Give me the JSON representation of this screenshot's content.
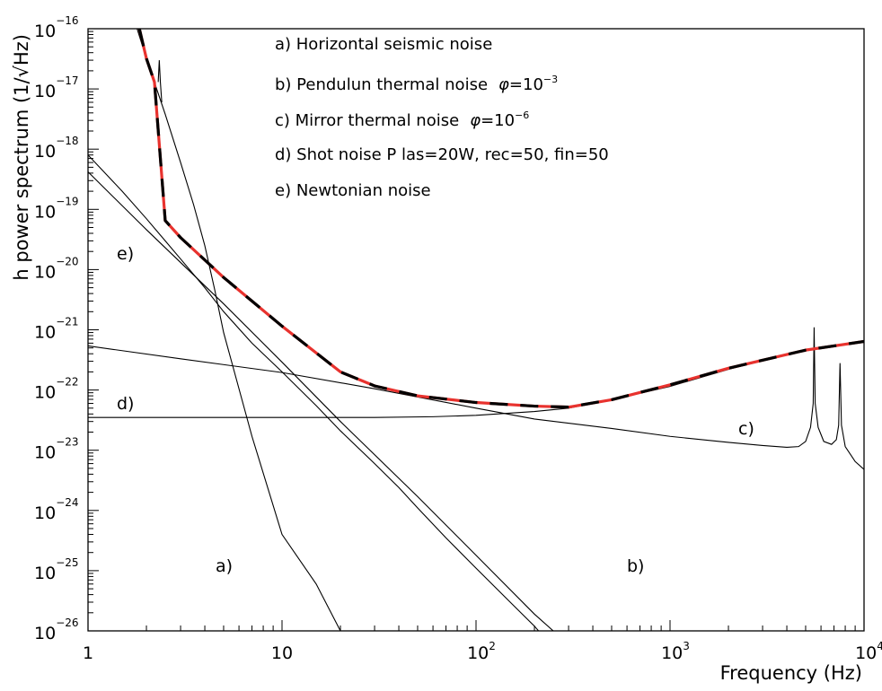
{
  "chart_data": {
    "type": "line",
    "title": "",
    "xlabel": "Frequency (Hz)",
    "ylabel": "h power spectrum (1/√Hz)",
    "x_scale": "log",
    "y_scale": "log",
    "xlim": [
      1,
      10000
    ],
    "ylim": [
      1e-26,
      1e-16
    ],
    "grid": false,
    "x_ticks": [
      {
        "value": 1,
        "base": "1",
        "exp": ""
      },
      {
        "value": 10,
        "base": "10",
        "exp": ""
      },
      {
        "value": 100,
        "base": "10",
        "exp": "2"
      },
      {
        "value": 1000,
        "base": "10",
        "exp": "3"
      },
      {
        "value": 10000,
        "base": "10",
        "exp": "4"
      }
    ],
    "y_ticks": [
      {
        "value": 1e-26,
        "base": "10",
        "exp": "−26"
      },
      {
        "value": 1e-25,
        "base": "10",
        "exp": "−25"
      },
      {
        "value": 1e-24,
        "base": "10",
        "exp": "−24"
      },
      {
        "value": 1e-23,
        "base": "10",
        "exp": "−23"
      },
      {
        "value": 1e-22,
        "base": "10",
        "exp": "−22"
      },
      {
        "value": 1e-21,
        "base": "10",
        "exp": "−21"
      },
      {
        "value": 1e-20,
        "base": "10",
        "exp": "−20"
      },
      {
        "value": 1e-19,
        "base": "10",
        "exp": "−19"
      },
      {
        "value": 1e-18,
        "base": "10",
        "exp": "−18"
      },
      {
        "value": 1e-17,
        "base": "10",
        "exp": "−17"
      },
      {
        "value": 1e-16,
        "base": "10",
        "exp": "−16"
      }
    ],
    "legend": [
      {
        "key": "a",
        "pre": "a) Horizontal seismic noise",
        "sym": "",
        "mid": "",
        "exp": ""
      },
      {
        "key": "b",
        "pre": "b) Pendulun thermal noise",
        "sym": "φ",
        "mid": "=10",
        "exp": "−3"
      },
      {
        "key": "c",
        "pre": "c) Mirror thermal noise",
        "sym": "φ",
        "mid": "=10",
        "exp": "−6"
      },
      {
        "key": "d",
        "pre": "d) Shot noise P las=20W, rec=50, fin=50",
        "sym": "",
        "mid": "",
        "exp": ""
      },
      {
        "key": "e",
        "pre": "e) Newtonian noise",
        "sym": "",
        "mid": "",
        "exp": ""
      }
    ],
    "curve_labels": {
      "a": "a)",
      "b": "b)",
      "c": "c)",
      "d": "d)",
      "e": "e)"
    },
    "series": [
      {
        "id": "a",
        "style": "thin",
        "points": [
          [
            1.79,
            1e-16
          ],
          [
            2.0,
            3.2e-17
          ],
          [
            2.5,
            3.8e-18
          ],
          [
            3.0,
            6e-19
          ],
          [
            3.5,
            1.2e-19
          ],
          [
            4.0,
            2.5e-20
          ],
          [
            4.5,
            4.6e-21
          ],
          [
            5.0,
            9e-22
          ],
          [
            7.0,
            1.7e-23
          ],
          [
            10,
            4e-25
          ],
          [
            15,
            6e-26
          ],
          [
            20,
            1e-26
          ]
        ]
      },
      {
        "id": "a-peak",
        "style": "thin",
        "points": [
          [
            2.3,
            1.3e-17
          ],
          [
            2.33,
            3e-17
          ],
          [
            2.36,
            1.3e-17
          ],
          [
            2.4,
            6e-18
          ]
        ]
      },
      {
        "id": "b",
        "style": "thin",
        "points": [
          [
            1,
            4.2e-19
          ],
          [
            2,
            4.6e-20
          ],
          [
            5,
            2.7e-21
          ],
          [
            10,
            2.9e-22
          ],
          [
            20,
            3e-23
          ],
          [
            50,
            1.7e-24
          ],
          [
            100,
            1.8e-25
          ],
          [
            200,
            1.9e-26
          ],
          [
            250,
            1e-26
          ]
        ]
      },
      {
        "id": "c",
        "style": "thin",
        "points": [
          [
            1,
            5.4e-22
          ],
          [
            3,
            3.3e-22
          ],
          [
            10,
            1.95e-22
          ],
          [
            30,
            1.05e-22
          ],
          [
            100,
            5e-23
          ],
          [
            200,
            3.3e-23
          ],
          [
            500,
            2.3e-23
          ],
          [
            1000,
            1.7e-23
          ],
          [
            2000,
            1.35e-23
          ],
          [
            3000,
            1.2e-23
          ],
          [
            4000,
            1.12e-23
          ],
          [
            4600,
            1.15e-23
          ],
          [
            5000,
            1.4e-23
          ],
          [
            5300,
            2.4e-23
          ],
          [
            5470,
            6e-23
          ],
          [
            5530,
            1.1e-21
          ],
          [
            5600,
            6e-23
          ],
          [
            5800,
            2.4e-23
          ],
          [
            6200,
            1.4e-23
          ],
          [
            6800,
            1.25e-23
          ],
          [
            7200,
            1.5e-23
          ],
          [
            7400,
            2.6e-23
          ],
          [
            7520,
            2.8e-22
          ],
          [
            7650,
            2.6e-23
          ],
          [
            8000,
            1.15e-23
          ],
          [
            9000,
            6.5e-24
          ],
          [
            10000,
            4.8e-24
          ]
        ]
      },
      {
        "id": "d",
        "style": "thin",
        "points": [
          [
            1,
            3.5e-23
          ],
          [
            30,
            3.5e-23
          ],
          [
            60,
            3.6e-23
          ],
          [
            100,
            3.8e-23
          ],
          [
            200,
            4.4e-23
          ],
          [
            300,
            5e-23
          ],
          [
            500,
            6.9e-23
          ],
          [
            1000,
            1.15e-22
          ],
          [
            2000,
            2.2e-22
          ],
          [
            5000,
            4.6e-22
          ],
          [
            10000,
            6.4e-22
          ]
        ]
      },
      {
        "id": "e",
        "style": "thin",
        "points": [
          [
            1,
            8e-19
          ],
          [
            1.5,
            2e-19
          ],
          [
            2,
            7e-20
          ],
          [
            2.5,
            3e-20
          ],
          [
            3,
            1.5e-20
          ],
          [
            4,
            5e-21
          ],
          [
            5,
            2e-21
          ],
          [
            7,
            6e-22
          ],
          [
            10,
            2e-22
          ],
          [
            15,
            5.5e-23
          ],
          [
            20,
            2.1e-23
          ],
          [
            30,
            6e-24
          ],
          [
            40,
            2.4e-24
          ],
          [
            50,
            1.1e-24
          ],
          [
            70,
            3.5e-25
          ],
          [
            100,
            1.1e-25
          ],
          [
            150,
            3e-26
          ],
          [
            200,
            1.2e-26
          ],
          [
            210,
            1e-26
          ]
        ]
      },
      {
        "id": "total",
        "style": "dashed",
        "points": [
          [
            1.84,
            1e-16
          ],
          [
            2.0,
            3.2e-17
          ],
          [
            2.2,
            1.3e-17
          ],
          [
            2.5,
            6.5e-20
          ],
          [
            3,
            3.4e-20
          ],
          [
            5,
            7.4e-21
          ],
          [
            10,
            1.15e-21
          ],
          [
            20,
            2e-22
          ],
          [
            30,
            1.17e-22
          ],
          [
            50,
            8e-23
          ],
          [
            100,
            6.2e-23
          ],
          [
            200,
            5.4e-23
          ],
          [
            300,
            5.2e-23
          ],
          [
            500,
            6.9e-23
          ],
          [
            1000,
            1.22e-22
          ],
          [
            2000,
            2.3e-22
          ],
          [
            5000,
            4.6e-22
          ],
          [
            10000,
            6.4e-22
          ]
        ]
      }
    ],
    "colors": {
      "axis": "#000000",
      "line": "#000000",
      "dash_red": "#e8322e",
      "dash_black": "#000000"
    }
  }
}
